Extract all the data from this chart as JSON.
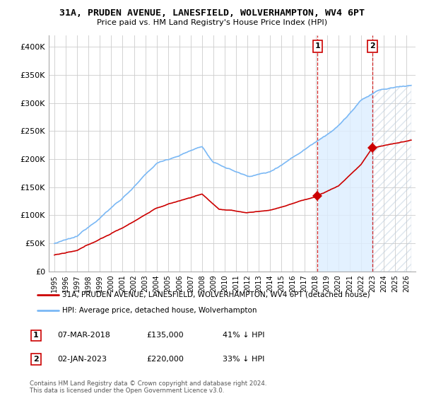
{
  "title": "31A, PRUDEN AVENUE, LANESFIELD, WOLVERHAMPTON, WV4 6PT",
  "subtitle": "Price paid vs. HM Land Registry's House Price Index (HPI)",
  "ylabel_ticks": [
    "£0",
    "£50K",
    "£100K",
    "£150K",
    "£200K",
    "£250K",
    "£300K",
    "£350K",
    "£400K"
  ],
  "ytick_vals": [
    0,
    50000,
    100000,
    150000,
    200000,
    250000,
    300000,
    350000,
    400000
  ],
  "ylim": [
    0,
    420000
  ],
  "sale1_price": 135000,
  "sale2_price": 220000,
  "sale1_x": 2018.18,
  "sale2_x": 2023.01,
  "sale1_date": "07-MAR-2018",
  "sale2_date": "02-JAN-2023",
  "sale1_hpi": "41% ↓ HPI",
  "sale2_hpi": "33% ↓ HPI",
  "hpi_color": "#7ab8f5",
  "price_color": "#cc0000",
  "shade_color": "#ddeeff",
  "vline_color": "#cc0000",
  "background_color": "#ffffff",
  "grid_color": "#cccccc",
  "legend_label_price": "31A, PRUDEN AVENUE, LANESFIELD, WOLVERHAMPTON, WV4 6PT (detached house)",
  "legend_label_hpi": "HPI: Average price, detached house, Wolverhampton",
  "footnote": "Contains HM Land Registry data © Crown copyright and database right 2024.\nThis data is licensed under the Open Government Licence v3.0.",
  "xlim_left": 1994.5,
  "xlim_right": 2026.8
}
